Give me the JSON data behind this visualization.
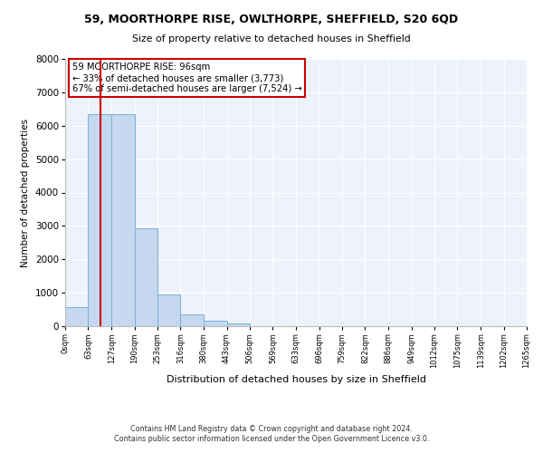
{
  "title": "59, MOORTHORPE RISE, OWLTHORPE, SHEFFIELD, S20 6QD",
  "subtitle": "Size of property relative to detached houses in Sheffield",
  "xlabel": "Distribution of detached houses by size in Sheffield",
  "ylabel": "Number of detached properties",
  "bin_edges": [
    0,
    63,
    127,
    190,
    253,
    316,
    380,
    443,
    506,
    569,
    633,
    696,
    759,
    822,
    886,
    949,
    1012,
    1075,
    1139,
    1202,
    1265
  ],
  "bin_counts": [
    560,
    6350,
    6350,
    2920,
    960,
    360,
    170,
    80,
    0,
    0,
    0,
    0,
    0,
    0,
    0,
    0,
    0,
    0,
    0,
    0
  ],
  "bar_color": "#c5d8f0",
  "bar_edge_color": "#7aafd4",
  "property_line_x": 96,
  "property_line_color": "#cc0000",
  "annotation_text": "59 MOORTHORPE RISE: 96sqm\n← 33% of detached houses are smaller (3,773)\n67% of semi-detached houses are larger (7,524) →",
  "annotation_box_edge": "#cc0000",
  "ylim": [
    0,
    8000
  ],
  "yticks": [
    0,
    1000,
    2000,
    3000,
    4000,
    5000,
    6000,
    7000,
    8000
  ],
  "xtick_labels": [
    "0sqm",
    "63sqm",
    "127sqm",
    "190sqm",
    "253sqm",
    "316sqm",
    "380sqm",
    "443sqm",
    "506sqm",
    "569sqm",
    "633sqm",
    "696sqm",
    "759sqm",
    "822sqm",
    "886sqm",
    "949sqm",
    "1012sqm",
    "1075sqm",
    "1139sqm",
    "1202sqm",
    "1265sqm"
  ],
  "footer_line1": "Contains HM Land Registry data © Crown copyright and database right 2024.",
  "footer_line2": "Contains public sector information licensed under the Open Government Licence v3.0.",
  "bg_color": "#ffffff",
  "plot_bg_color": "#eef2fb"
}
